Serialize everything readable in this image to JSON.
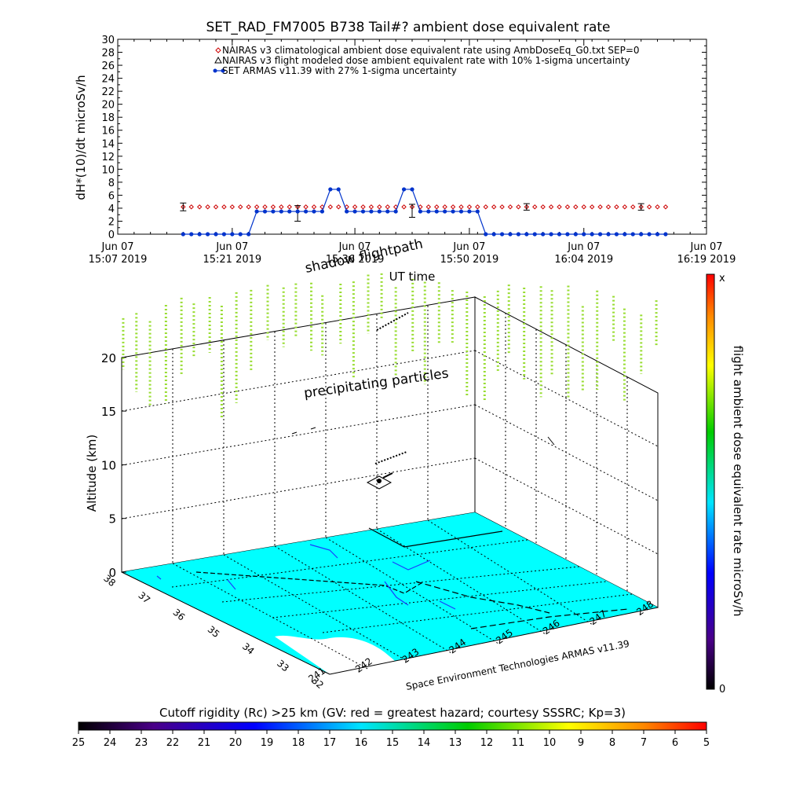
{
  "chart_data": [
    {
      "type": "line",
      "title": "SET_RAD_FM7005  B738 Tail#? ambient dose equivalent rate",
      "xlabel": "UT time",
      "ylabel": "dH*(10)/dt microSv/h",
      "ylim": [
        0,
        30
      ],
      "xlim": [
        0,
        72
      ],
      "yticks": [
        "0",
        "2",
        "4",
        "6",
        "8",
        "10",
        "12",
        "14",
        "16",
        "18",
        "20",
        "22",
        "24",
        "26",
        "28",
        "30"
      ],
      "xticks": [
        {
          "x": 0,
          "line1": "Jun 07",
          "line2": "15:07 2019"
        },
        {
          "x": 14,
          "line1": "Jun 07",
          "line2": "15:21 2019"
        },
        {
          "x": 29,
          "line1": "Jun 07",
          "line2": "15:36 2019"
        },
        {
          "x": 43,
          "line1": "Jun 07",
          "line2": "15:50 2019"
        },
        {
          "x": 57,
          "line1": "Jun 07",
          "line2": "16:04 2019"
        },
        {
          "x": 72,
          "line1": "Jun 07",
          "line2": "16:19 2019"
        }
      ],
      "legend": [
        {
          "marker": "diamond",
          "color": "#cc0000",
          "text": "NAIRAS v3 climatological ambient dose equivalent rate using AmbDoseEq_G0.txt SEP=0"
        },
        {
          "marker": "triangle",
          "color": "#000000",
          "text": "NAIRAS v3 flight modeled dose ambient equivalent rate with 10% 1-sigma uncertainty"
        },
        {
          "marker": "dot",
          "color": "#0033cc",
          "text": "SET ARMAS v11.39 with 27% 1-sigma uncertainty"
        }
      ],
      "legend_position": "top",
      "series": [
        {
          "name": "NAIRAS v3 climatological ambient dose equivalent rate using AmbDoseEq_G0.txt SEP=0",
          "color": "#cc0000",
          "x": [
            8,
            9,
            10,
            11,
            12,
            13,
            14,
            15,
            16,
            17,
            18,
            19,
            20,
            21,
            22,
            23,
            24,
            25,
            26,
            27,
            28,
            29,
            30,
            31,
            32,
            33,
            34,
            35,
            36,
            37,
            38,
            39,
            40,
            41,
            42,
            43,
            44,
            45,
            46,
            47,
            48,
            49,
            50,
            51,
            52,
            53,
            54,
            55,
            56,
            57,
            58,
            59,
            60,
            61,
            62,
            63,
            64,
            65,
            66,
            67
          ],
          "y": [
            4.2,
            4.2,
            4.2,
            4.2,
            4.2,
            4.2,
            4.2,
            4.2,
            4.2,
            4.2,
            4.2,
            4.2,
            4.2,
            4.2,
            4.2,
            4.2,
            4.2,
            4.2,
            4.2,
            4.2,
            4.2,
            4.2,
            4.2,
            4.2,
            4.2,
            4.2,
            4.2,
            4.2,
            4.2,
            4.2,
            4.2,
            4.2,
            4.2,
            4.2,
            4.2,
            4.2,
            4.2,
            4.2,
            4.2,
            4.2,
            4.2,
            4.2,
            4.2,
            4.2,
            4.2,
            4.2,
            4.2,
            4.2,
            4.2,
            4.2,
            4.2,
            4.2,
            4.2,
            4.2,
            4.2,
            4.2,
            4.2,
            4.2,
            4.2,
            4.2
          ]
        },
        {
          "name": "NAIRAS v3 flight modeled dose ambient equivalent rate with 10% 1-sigma uncertainty",
          "color": "#000000",
          "x": [
            8,
            22,
            36,
            50,
            64
          ],
          "y": [
            4.2,
            3.2,
            3.6,
            4.2,
            4.2
          ],
          "err": [
            0.6,
            1.2,
            1.0,
            0.5,
            0.5
          ]
        },
        {
          "name": "SET ARMAS v11.39 with 27% 1-sigma uncertainty",
          "color": "#0033cc",
          "x": [
            8,
            9,
            10,
            11,
            12,
            13,
            14,
            15,
            16,
            17,
            18,
            19,
            20,
            21,
            22,
            23,
            24,
            25,
            26,
            27,
            28,
            29,
            30,
            31,
            32,
            33,
            34,
            35,
            36,
            37,
            38,
            39,
            40,
            41,
            42,
            43,
            44,
            45,
            46,
            47,
            48,
            49,
            50,
            51,
            52,
            53,
            54,
            55,
            56,
            57,
            58,
            59,
            60,
            61,
            62,
            63,
            64,
            65,
            66,
            67
          ],
          "y": [
            0,
            0,
            0,
            0,
            0,
            0,
            0,
            0,
            0,
            3.5,
            3.5,
            3.5,
            3.5,
            3.5,
            3.5,
            3.5,
            3.5,
            3.5,
            6.9,
            6.9,
            3.5,
            3.5,
            3.5,
            3.5,
            3.5,
            3.5,
            3.5,
            6.9,
            6.9,
            3.5,
            3.5,
            3.5,
            3.5,
            3.5,
            3.5,
            3.5,
            3.5,
            0,
            0,
            0,
            0,
            0,
            0,
            0,
            0,
            0,
            0,
            0,
            0,
            0,
            0,
            0,
            0,
            0,
            0,
            0,
            0,
            0,
            0,
            0
          ]
        }
      ]
    },
    {
      "type": "surface-3d",
      "zlabel": "Altitude (km)",
      "zticks": [
        "0",
        "5",
        "10",
        "15",
        "20"
      ],
      "lat_ticks": [
        "32",
        "33",
        "34",
        "35",
        "36",
        "37",
        "38"
      ],
      "lon_ticks": [
        "241",
        "242",
        "243",
        "244",
        "245",
        "246",
        "247",
        "248"
      ],
      "annotations": {
        "shadow": "shadow flightpath",
        "precip": "precipitating particles",
        "credit": "Space Environment Technologies ARMAS v11.39"
      },
      "colorbar": {
        "label": "flight ambient dose equivalent rate microSv/h",
        "top": "x",
        "bottom": "0"
      },
      "surface_color": "#00ffff"
    }
  ],
  "rigidity_bar": {
    "title": "Cutoff rigidity (Rc) >25 km (GV: red = greatest hazard; courtesy SSSRC; Kp=3)",
    "ticks": [
      "25",
      "24",
      "23",
      "22",
      "21",
      "20",
      "19",
      "18",
      "17",
      "16",
      "15",
      "14",
      "13",
      "12",
      "11",
      "10",
      "9",
      "8",
      "7",
      "6",
      "5"
    ]
  }
}
